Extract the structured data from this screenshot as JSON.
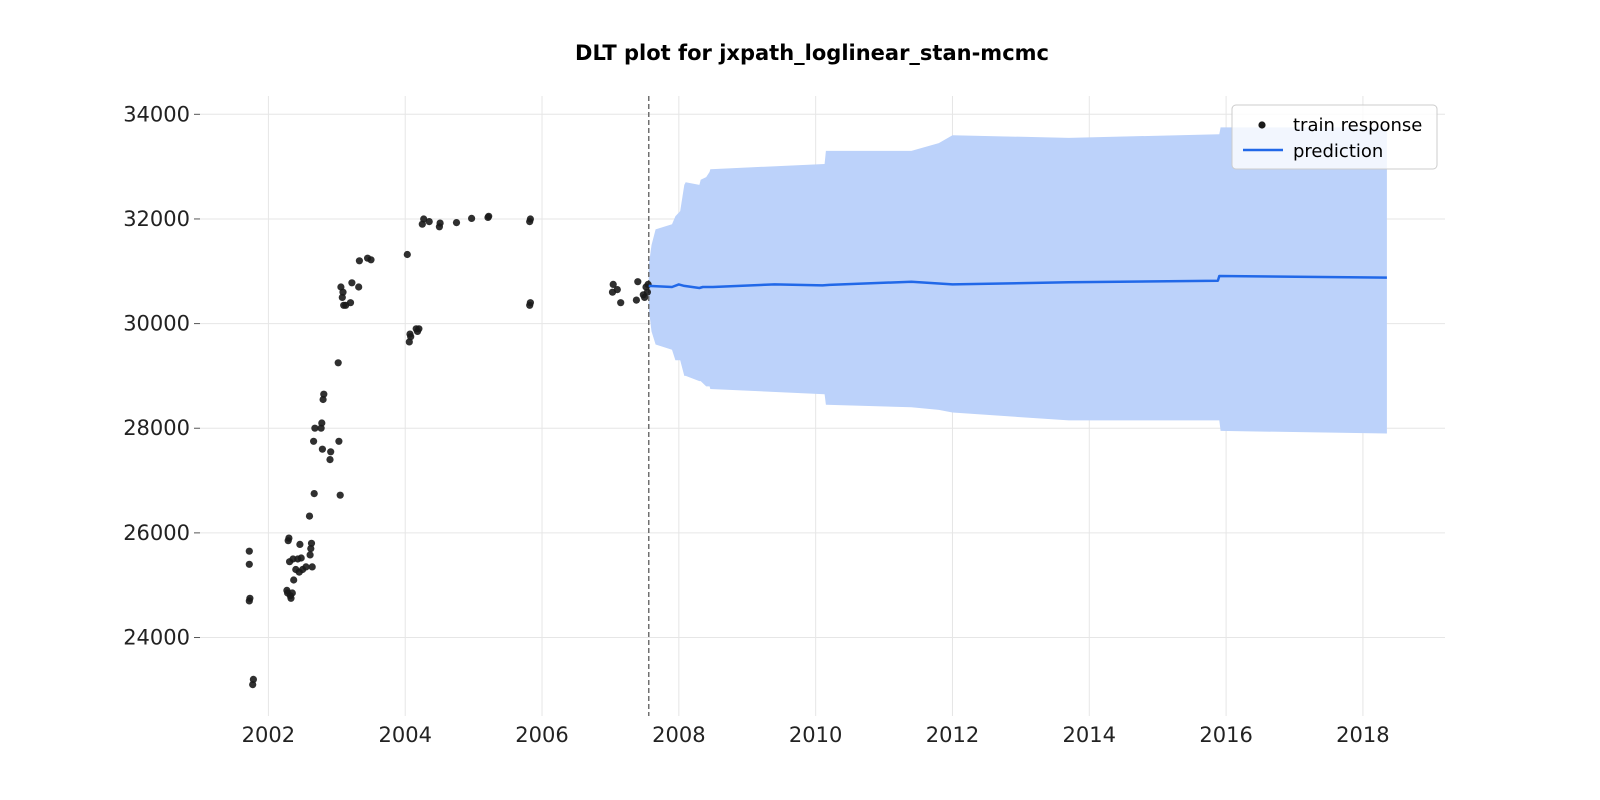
{
  "chart_data": {
    "type": "line",
    "title": "DLT plot for jxpath_loglinear_stan-mcmc",
    "xlabel": "",
    "ylabel": "",
    "xlim": [
      2001.0,
      2019.2
    ],
    "ylim": [
      22500,
      34350
    ],
    "x_ticks": [
      "2002",
      "2004",
      "2006",
      "2008",
      "2010",
      "2012",
      "2014",
      "2016",
      "2018"
    ],
    "y_ticks": [
      "24000",
      "26000",
      "28000",
      "30000",
      "32000",
      "34000"
    ],
    "grid": true,
    "legend": {
      "position": "top-right",
      "entries": [
        "train response",
        "prediction"
      ]
    },
    "colors": {
      "train_response": "#1a1a1a",
      "prediction": "#2168e8",
      "interval": "#bcd2fa",
      "split_line": "#707070"
    },
    "split_date": 2007.56,
    "series": [
      {
        "name": "train response",
        "type": "scatter",
        "points": [
          [
            2001.72,
            24700
          ],
          [
            2001.73,
            24750
          ],
          [
            2001.72,
            25400
          ],
          [
            2001.72,
            25650
          ],
          [
            2001.77,
            23100
          ],
          [
            2001.78,
            23200
          ],
          [
            2002.27,
            24900
          ],
          [
            2002.28,
            24850
          ],
          [
            2002.29,
            25850
          ],
          [
            2002.3,
            25900
          ],
          [
            2002.31,
            25450
          ],
          [
            2002.32,
            24800
          ],
          [
            2002.33,
            24750
          ],
          [
            2002.35,
            24850
          ],
          [
            2002.36,
            25500
          ],
          [
            2002.37,
            25100
          ],
          [
            2002.4,
            25300
          ],
          [
            2002.43,
            25500
          ],
          [
            2002.45,
            25250
          ],
          [
            2002.46,
            25780
          ],
          [
            2002.48,
            25520
          ],
          [
            2002.5,
            25300
          ],
          [
            2002.55,
            25350
          ],
          [
            2002.6,
            26320
          ],
          [
            2002.61,
            25580
          ],
          [
            2002.62,
            25700
          ],
          [
            2002.63,
            25800
          ],
          [
            2002.64,
            25350
          ],
          [
            2002.66,
            27750
          ],
          [
            2002.67,
            26750
          ],
          [
            2002.68,
            28000
          ],
          [
            2002.77,
            28000
          ],
          [
            2002.78,
            28100
          ],
          [
            2002.79,
            27600
          ],
          [
            2002.8,
            28550
          ],
          [
            2002.81,
            28650
          ],
          [
            2002.9,
            27400
          ],
          [
            2002.91,
            27550
          ],
          [
            2003.02,
            29250
          ],
          [
            2003.03,
            27750
          ],
          [
            2003.05,
            26720
          ],
          [
            2003.06,
            30700
          ],
          [
            2003.08,
            30500
          ],
          [
            2003.09,
            30600
          ],
          [
            2003.1,
            30350
          ],
          [
            2003.13,
            30350
          ],
          [
            2003.2,
            30400
          ],
          [
            2003.22,
            30780
          ],
          [
            2003.32,
            30700
          ],
          [
            2003.33,
            31200
          ],
          [
            2003.45,
            31250
          ],
          [
            2003.5,
            31220
          ],
          [
            2004.03,
            31320
          ],
          [
            2004.06,
            29650
          ],
          [
            2004.07,
            29800
          ],
          [
            2004.08,
            29750
          ],
          [
            2004.16,
            29900
          ],
          [
            2004.18,
            29850
          ],
          [
            2004.2,
            29900
          ],
          [
            2004.25,
            31900
          ],
          [
            2004.27,
            32000
          ],
          [
            2004.35,
            31950
          ],
          [
            2004.5,
            31850
          ],
          [
            2004.51,
            31920
          ],
          [
            2004.75,
            31930
          ],
          [
            2004.97,
            32010
          ],
          [
            2005.21,
            32030
          ],
          [
            2005.22,
            32050
          ],
          [
            2005.82,
            30350
          ],
          [
            2005.83,
            30400
          ],
          [
            2005.82,
            31950
          ],
          [
            2005.83,
            32000
          ],
          [
            2007.03,
            30600
          ],
          [
            2007.04,
            30750
          ],
          [
            2007.1,
            30650
          ],
          [
            2007.15,
            30400
          ],
          [
            2007.38,
            30450
          ],
          [
            2007.4,
            30800
          ],
          [
            2007.48,
            30550
          ],
          [
            2007.5,
            30500
          ],
          [
            2007.52,
            30700
          ],
          [
            2007.54,
            30600
          ],
          [
            2007.55,
            30750
          ]
        ]
      },
      {
        "name": "prediction",
        "type": "line",
        "x": [
          2007.56,
          2007.9,
          2008.0,
          2008.08,
          2008.3,
          2008.35,
          2008.5,
          2009.4,
          2010.1,
          2010.2,
          2011.4,
          2012.0,
          2013.7,
          2015.88,
          2015.9,
          2018.35
        ],
        "y": [
          30720,
          30700,
          30750,
          30720,
          30680,
          30700,
          30700,
          30750,
          30730,
          30740,
          30800,
          30750,
          30790,
          30820,
          30910,
          30880
        ]
      }
    ],
    "interval": {
      "x": [
        2007.56,
        2007.6,
        2007.66,
        2007.9,
        2007.95,
        2008.02,
        2008.08,
        2008.1,
        2008.3,
        2008.32,
        2008.4,
        2008.45,
        2008.46,
        2010.13,
        2010.15,
        2011.4,
        2011.8,
        2012.0,
        2013.7,
        2015.9,
        2015.92,
        2018.35
      ],
      "lower": [
        30300,
        29850,
        29600,
        29500,
        29300,
        29300,
        29000,
        29000,
        28900,
        28900,
        28800,
        28800,
        28750,
        28650,
        28450,
        28400,
        28350,
        28300,
        28150,
        28150,
        27950,
        27900
      ],
      "upper": [
        31100,
        31500,
        31800,
        31900,
        32050,
        32150,
        32650,
        32700,
        32650,
        32750,
        32800,
        32900,
        32950,
        33050,
        33300,
        33300,
        33450,
        33600,
        33550,
        33620,
        33750,
        33750
      ]
    }
  }
}
